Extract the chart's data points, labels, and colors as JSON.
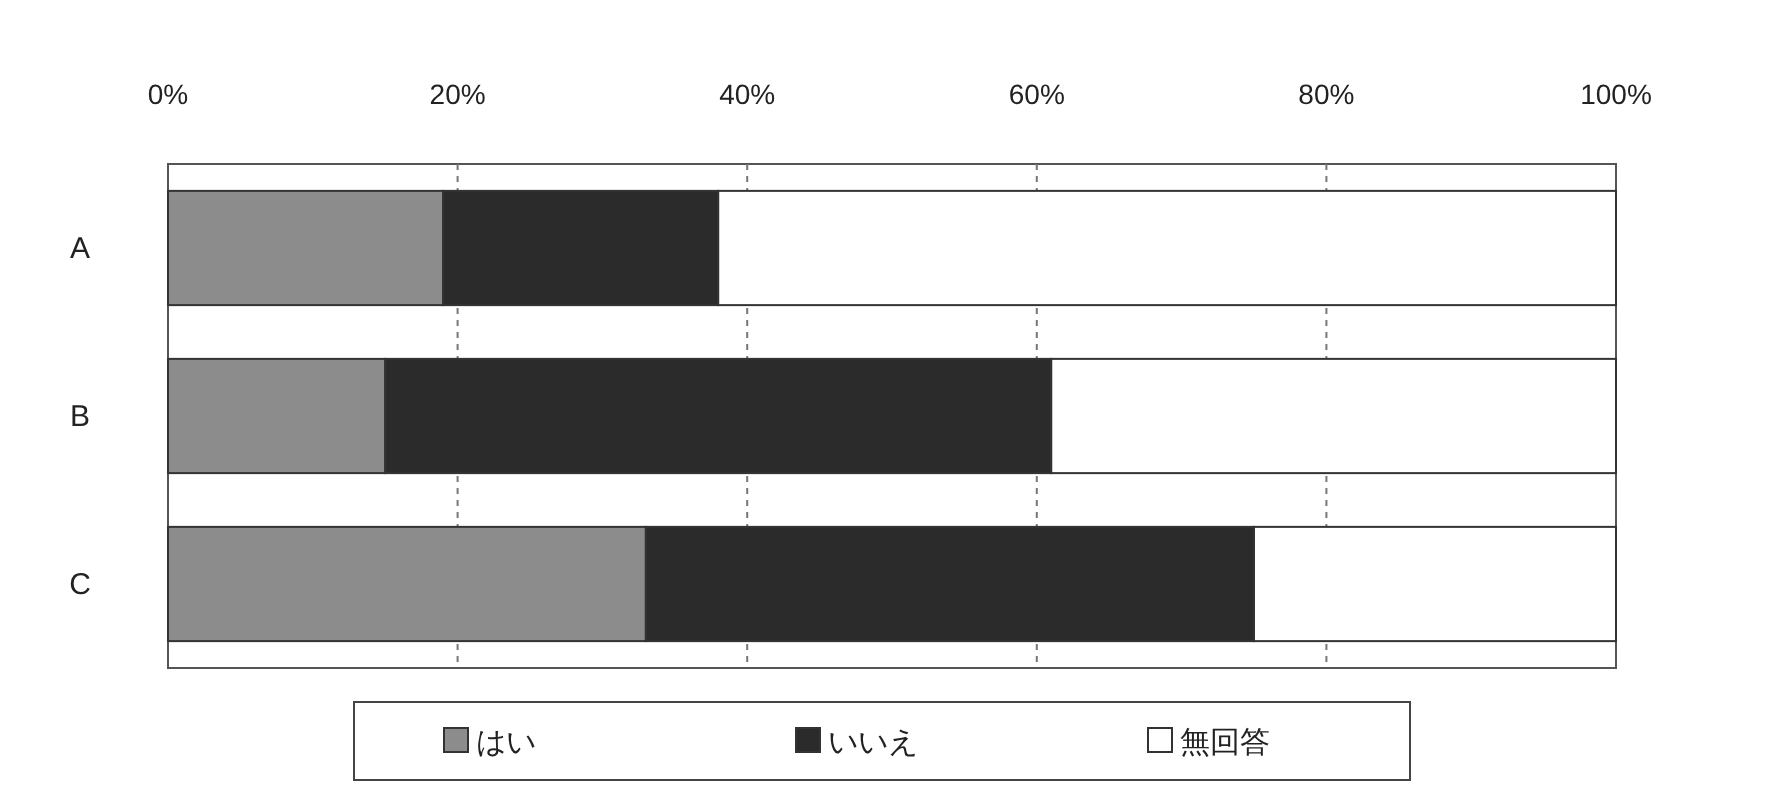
{
  "chart_data": {
    "type": "bar",
    "orientation": "horizontal",
    "stacked": true,
    "categories": [
      "A",
      "B",
      "C"
    ],
    "series": [
      {
        "name": "はい",
        "color": "#8c8c8c",
        "values": [
          19,
          15,
          33
        ]
      },
      {
        "name": "いいえ",
        "color": "#2b2b2b",
        "values": [
          19,
          46,
          42
        ]
      },
      {
        "name": "無回答",
        "color": "#ffffff",
        "values": [
          62,
          39,
          25
        ]
      }
    ],
    "xlim": [
      0,
      100
    ],
    "xticks": [
      {
        "value": 0,
        "label": "0%"
      },
      {
        "value": 20,
        "label": "20%"
      },
      {
        "value": 40,
        "label": "40%"
      },
      {
        "value": 60,
        "label": "60%"
      },
      {
        "value": 80,
        "label": "80%"
      },
      {
        "value": 100,
        "label": "100%"
      }
    ],
    "grid": "x",
    "legend": "bottom"
  }
}
